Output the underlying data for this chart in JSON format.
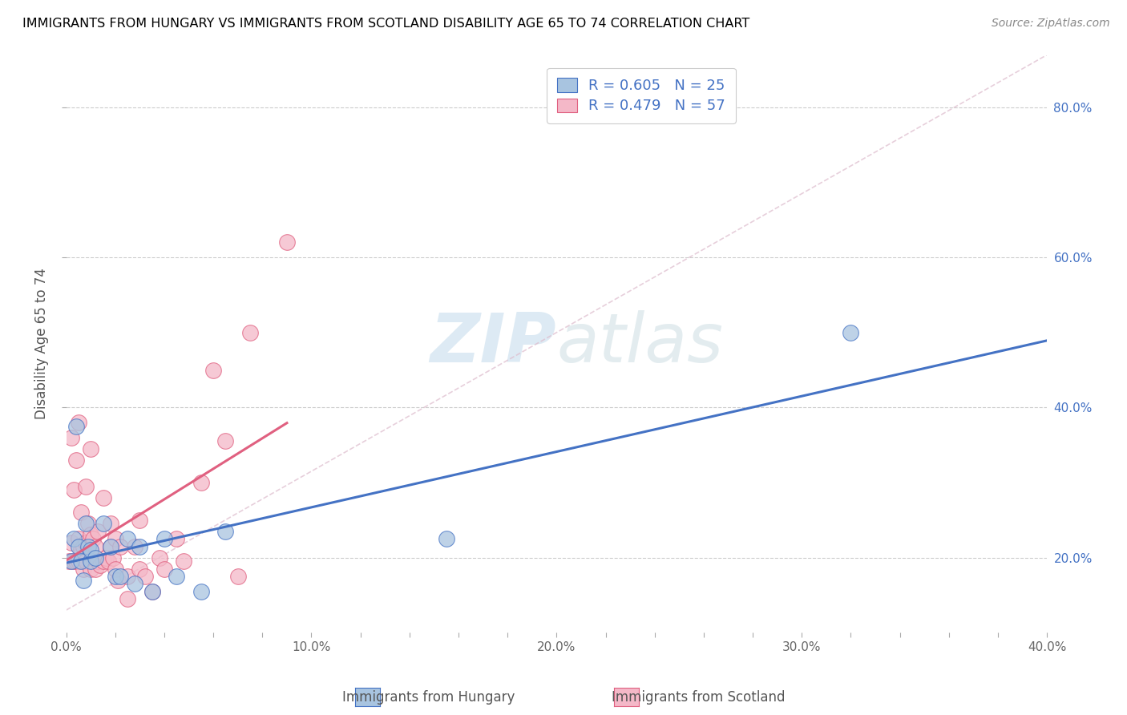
{
  "title": "IMMIGRANTS FROM HUNGARY VS IMMIGRANTS FROM SCOTLAND DISABILITY AGE 65 TO 74 CORRELATION CHART",
  "source": "Source: ZipAtlas.com",
  "ylabel": "Disability Age 65 to 74",
  "xlim": [
    0.0,
    0.4
  ],
  "ylim": [
    0.1,
    0.87
  ],
  "xtick_labels": [
    "0.0%",
    "",
    "",
    "",
    "",
    "10.0%",
    "",
    "",
    "",
    "",
    "20.0%",
    "",
    "",
    "",
    "",
    "30.0%",
    "",
    "",
    "",
    "",
    "40.0%"
  ],
  "xtick_values": [
    0.0,
    0.02,
    0.04,
    0.06,
    0.08,
    0.1,
    0.12,
    0.14,
    0.16,
    0.18,
    0.2,
    0.22,
    0.24,
    0.26,
    0.28,
    0.3,
    0.32,
    0.34,
    0.36,
    0.38,
    0.4
  ],
  "ytick_labels": [
    "20.0%",
    "40.0%",
    "60.0%",
    "80.0%"
  ],
  "ytick_values": [
    0.2,
    0.4,
    0.6,
    0.8
  ],
  "hungary_color": "#a8c4e0",
  "scotland_color": "#f4b8c8",
  "hungary_line_color": "#4472c4",
  "scotland_line_color": "#e06080",
  "legend_hungary_label": "Immigrants from Hungary",
  "legend_scotland_label": "Immigrants from Scotland",
  "R_hungary": 0.605,
  "N_hungary": 25,
  "R_scotland": 0.479,
  "N_scotland": 57,
  "hungary_scatter_x": [
    0.002,
    0.003,
    0.004,
    0.005,
    0.006,
    0.007,
    0.008,
    0.009,
    0.01,
    0.01,
    0.012,
    0.015,
    0.018,
    0.02,
    0.022,
    0.025,
    0.028,
    0.03,
    0.035,
    0.04,
    0.045,
    0.055,
    0.065,
    0.155,
    0.32
  ],
  "hungary_scatter_y": [
    0.195,
    0.225,
    0.375,
    0.215,
    0.195,
    0.17,
    0.245,
    0.215,
    0.195,
    0.21,
    0.2,
    0.245,
    0.215,
    0.175,
    0.175,
    0.225,
    0.165,
    0.215,
    0.155,
    0.225,
    0.175,
    0.155,
    0.235,
    0.225,
    0.5
  ],
  "scotland_scatter_x": [
    0.001,
    0.002,
    0.002,
    0.003,
    0.003,
    0.004,
    0.004,
    0.005,
    0.005,
    0.005,
    0.006,
    0.006,
    0.007,
    0.007,
    0.007,
    0.008,
    0.008,
    0.008,
    0.009,
    0.01,
    0.01,
    0.01,
    0.011,
    0.011,
    0.012,
    0.012,
    0.013,
    0.013,
    0.014,
    0.015,
    0.015,
    0.016,
    0.017,
    0.018,
    0.018,
    0.019,
    0.02,
    0.02,
    0.021,
    0.022,
    0.025,
    0.025,
    0.028,
    0.03,
    0.03,
    0.032,
    0.035,
    0.038,
    0.04,
    0.045,
    0.048,
    0.055,
    0.06,
    0.065,
    0.07,
    0.075,
    0.09
  ],
  "scotland_scatter_y": [
    0.195,
    0.36,
    0.22,
    0.195,
    0.29,
    0.195,
    0.33,
    0.195,
    0.225,
    0.38,
    0.21,
    0.26,
    0.185,
    0.2,
    0.215,
    0.195,
    0.22,
    0.295,
    0.245,
    0.185,
    0.23,
    0.345,
    0.2,
    0.225,
    0.185,
    0.215,
    0.195,
    0.235,
    0.19,
    0.195,
    0.28,
    0.2,
    0.195,
    0.215,
    0.245,
    0.2,
    0.185,
    0.225,
    0.17,
    0.215,
    0.145,
    0.175,
    0.215,
    0.185,
    0.25,
    0.175,
    0.155,
    0.2,
    0.185,
    0.225,
    0.195,
    0.3,
    0.45,
    0.355,
    0.175,
    0.5,
    0.62
  ],
  "watermark_zip": "ZIP",
  "watermark_atlas": "atlas",
  "background_color": "#ffffff",
  "grid_color": "#cccccc",
  "diag_line_color": "#ddbbcc"
}
